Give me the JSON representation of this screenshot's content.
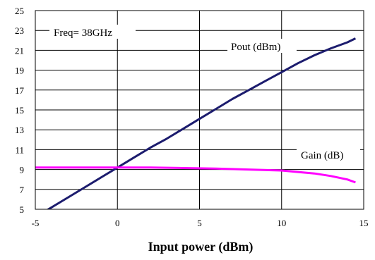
{
  "chart_data": {
    "type": "line",
    "title": "",
    "xlabel": "Input power (dBm)",
    "ylabel": "",
    "xlim": [
      -5,
      15
    ],
    "ylim": [
      5,
      25
    ],
    "x_ticks": [
      "-5",
      "0",
      "5",
      "10",
      "15"
    ],
    "y_ticks": [
      "5",
      "7",
      "9",
      "11",
      "13",
      "15",
      "17",
      "19",
      "21",
      "23",
      "25"
    ],
    "grid": true,
    "annotation": "Freq= 38GHz",
    "series": [
      {
        "name": "Pout (dBm)",
        "color": "#1c1c6e",
        "x": [
          -4.5,
          -3,
          -2,
          -1,
          0,
          1,
          2,
          3,
          4,
          5,
          6,
          7,
          8,
          9,
          10,
          11,
          12,
          13,
          14,
          14.5
        ],
        "y": [
          4.7,
          6.2,
          7.2,
          8.2,
          9.2,
          10.2,
          11.2,
          12.1,
          13.1,
          14.1,
          15.1,
          16.1,
          17.0,
          17.9,
          18.8,
          19.7,
          20.5,
          21.2,
          21.8,
          22.2
        ]
      },
      {
        "name": "Gain (dB)",
        "color": "#ff00ff",
        "x": [
          -5,
          -4,
          -2,
          0,
          2,
          4,
          6,
          8,
          10,
          11,
          12,
          13,
          14,
          14.5
        ],
        "y": [
          9.2,
          9.2,
          9.2,
          9.2,
          9.2,
          9.15,
          9.1,
          9.0,
          8.9,
          8.75,
          8.6,
          8.35,
          8.0,
          7.7
        ]
      }
    ]
  }
}
